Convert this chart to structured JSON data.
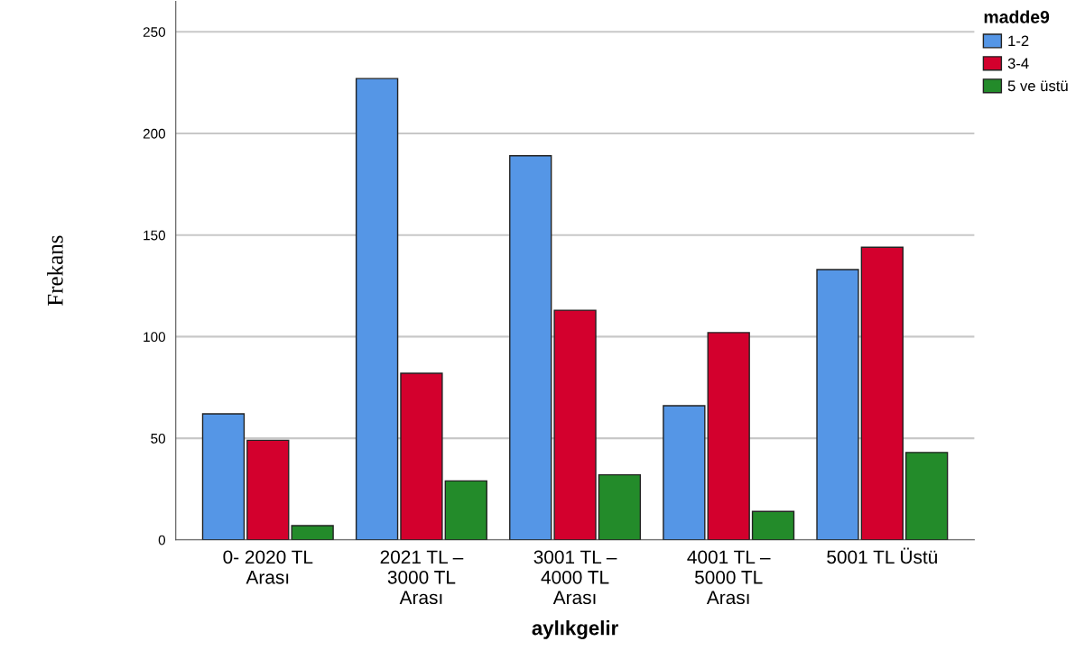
{
  "chart_data": {
    "type": "bar",
    "xlabel": "aylıkgelir",
    "ylabel": "Frekans",
    "legend_title": "madde9",
    "categories": [
      "0- 2020 TL\nArası",
      "2021 TL –\n3000 TL\nArası",
      "3001 TL –\n4000 TL\nArası",
      "4001 TL –\n5000 TL\nArası",
      "5001 TL Üstü"
    ],
    "series": [
      {
        "name": "1-2",
        "color": "#5596e6",
        "values": [
          62,
          227,
          189,
          66,
          133
        ]
      },
      {
        "name": "3-4",
        "color": "#d3002d",
        "values": [
          49,
          82,
          113,
          102,
          144
        ]
      },
      {
        "name": "5 ve üstü",
        "color": "#238b2a",
        "values": [
          7,
          29,
          32,
          14,
          43
        ]
      }
    ],
    "ylim": [
      0,
      265
    ],
    "yticks": [
      0,
      50,
      100,
      150,
      200,
      250
    ],
    "grid": "y",
    "legend": "top right"
  }
}
